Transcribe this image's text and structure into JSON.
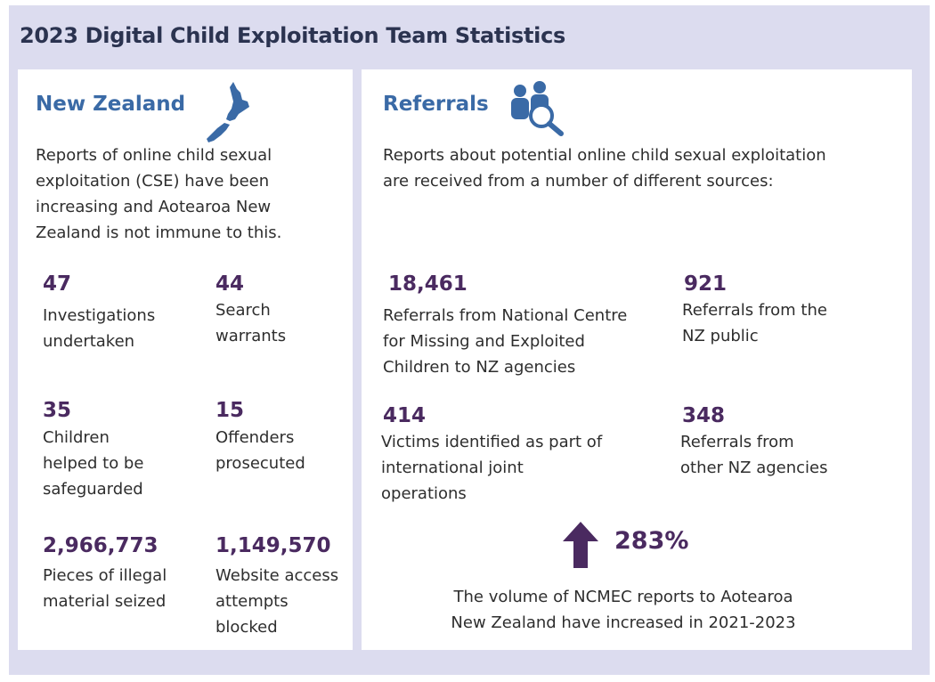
{
  "title": "2023 Digital Child Exploitation Team Statistics",
  "colors": {
    "frame": "#dcdcef",
    "heading": "#3a6aa6",
    "number": "#4a2a60",
    "title": "#2b3350"
  },
  "left": {
    "heading": "New Zealand",
    "icon": "new-zealand-map-icon",
    "description": [
      "Reports of online child sexual",
      "exploitation (CSE) have been",
      "increasing  and Aotearoa New",
      "Zealand is not immune to this."
    ],
    "stats": [
      {
        "value": "47",
        "label": [
          "Investigations",
          "undertaken"
        ]
      },
      {
        "value": "44",
        "label": [
          "Search",
          "warrants"
        ]
      },
      {
        "value": "35",
        "label": [
          "Children",
          "helped to be",
          "safeguarded"
        ]
      },
      {
        "value": "15",
        "label": [
          "Offenders",
          "prosecuted"
        ]
      },
      {
        "value": "2,966,773",
        "label": [
          "Pieces of illegal",
          "material seized"
        ]
      },
      {
        "value": "1,149,570",
        "label": [
          "Website access",
          "attempts",
          "blocked"
        ]
      }
    ]
  },
  "right": {
    "heading": "Referrals",
    "icon": "people-search-icon",
    "description": [
      "Reports about potential online child sexual exploitation",
      "are received from a number of different sources:"
    ],
    "stats": [
      {
        "value": "18,461",
        "label": [
          "Referrals from National Centre",
          "for Missing and Exploited",
          "Children to NZ agencies"
        ]
      },
      {
        "value": "921",
        "label": [
          "Referrals from the",
          "NZ public"
        ]
      },
      {
        "value": "414",
        "label": [
          "Victims identified as part of",
          "international joint",
          "operations"
        ]
      },
      {
        "value": "348",
        "label": [
          "Referrals from",
          "other NZ agencies"
        ]
      }
    ],
    "increase": {
      "icon": "arrow-up-icon",
      "value": "283%",
      "note": [
        "The volume of NCMEC reports to Aotearoa",
        "New Zealand have increased in 2021-2023"
      ]
    }
  }
}
